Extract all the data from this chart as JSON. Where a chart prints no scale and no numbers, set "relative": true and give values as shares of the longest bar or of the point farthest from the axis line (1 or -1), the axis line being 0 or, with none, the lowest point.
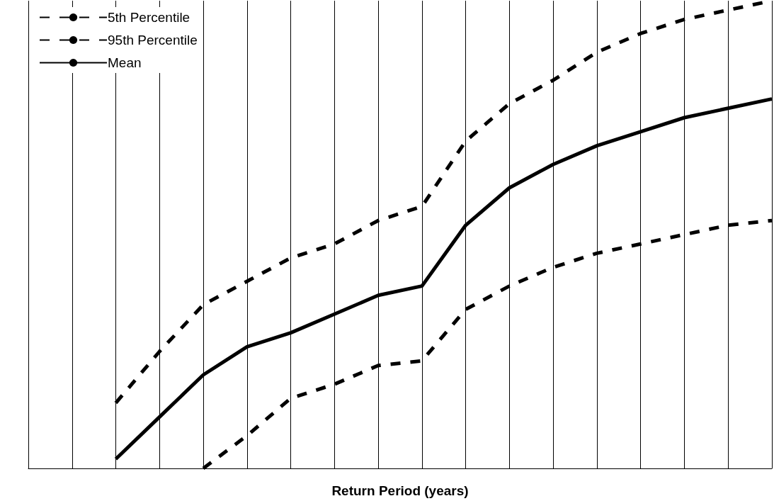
{
  "chart_data": {
    "type": "line",
    "xlabel": "Return Period (years)",
    "relative": true,
    "grid": "x",
    "legend": "top left",
    "marker": "none",
    "categories": [
      null,
      null,
      null,
      null,
      null,
      null,
      null,
      null,
      null,
      null,
      null,
      null,
      null,
      null,
      null,
      null,
      null,
      null
    ],
    "series": [
      {
        "name": "5th Percentile",
        "color": "#000000",
        "line_style": "dashed",
        "values": [
          null,
          null,
          null,
          null,
          0,
          0.07,
          0.15,
          0.18,
          0.22,
          0.23,
          0.34,
          0.39,
          0.43,
          0.46,
          0.48,
          0.5,
          0.52,
          0.53
        ]
      },
      {
        "name": "95th Percentile",
        "color": "#000000",
        "line_style": "dashed",
        "values": [
          null,
          null,
          0.14,
          0.25,
          0.35,
          0.4,
          0.45,
          0.48,
          0.53,
          0.56,
          0.7,
          0.78,
          0.83,
          0.89,
          0.93,
          0.96,
          0.98,
          1
        ]
      },
      {
        "name": "Mean",
        "color": "#000000",
        "line_style": "solid",
        "values": [
          null,
          null,
          0.02,
          0.11,
          0.2,
          0.26,
          0.29,
          0.33,
          0.37,
          0.39,
          0.52,
          0.6,
          0.65,
          0.69,
          0.72,
          0.75,
          0.77,
          0.79
        ]
      }
    ]
  }
}
